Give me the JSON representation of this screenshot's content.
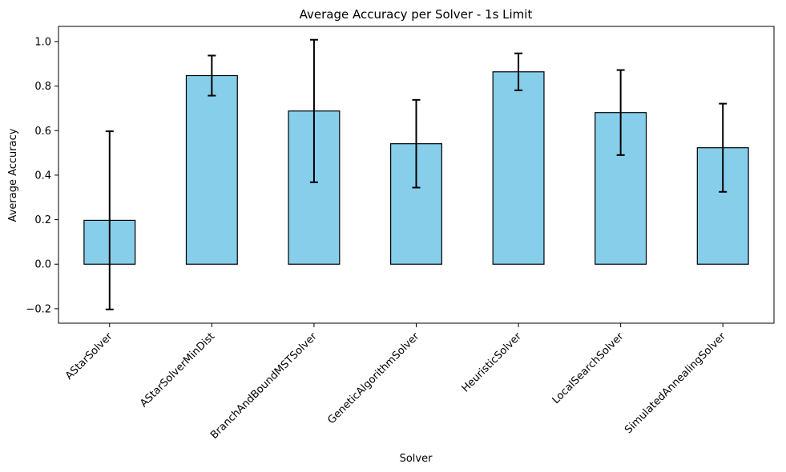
{
  "chart_data": {
    "type": "bar",
    "title": "Average Accuracy per Solver - 1s Limit",
    "xlabel": "Solver",
    "ylabel": "Average Accuracy",
    "categories": [
      "AStarSolver",
      "AStarSolverMinDist",
      "BranchAndBoundMSTSolver",
      "GeneticAlgorithmSolver",
      "HeuristicSolver",
      "LocalSearchSolver",
      "SimulatedAnnealingSolver"
    ],
    "values": [
      0.197,
      0.847,
      0.688,
      0.541,
      0.864,
      0.681,
      0.523
    ],
    "errors": [
      0.4,
      0.09,
      0.32,
      0.197,
      0.083,
      0.191,
      0.198
    ],
    "ylim": [
      -0.265,
      1.068
    ],
    "yticks": [
      -0.2,
      0.0,
      0.2,
      0.4,
      0.6,
      0.8,
      1.0
    ],
    "ytick_labels": [
      "−0.2",
      "0.0",
      "0.2",
      "0.4",
      "0.6",
      "0.8",
      "1.0"
    ],
    "grid": false,
    "legend": "none",
    "colors": {
      "bar_fill": "#87ceeb",
      "bar_edge": "#000000",
      "error_bar": "#000000"
    }
  }
}
